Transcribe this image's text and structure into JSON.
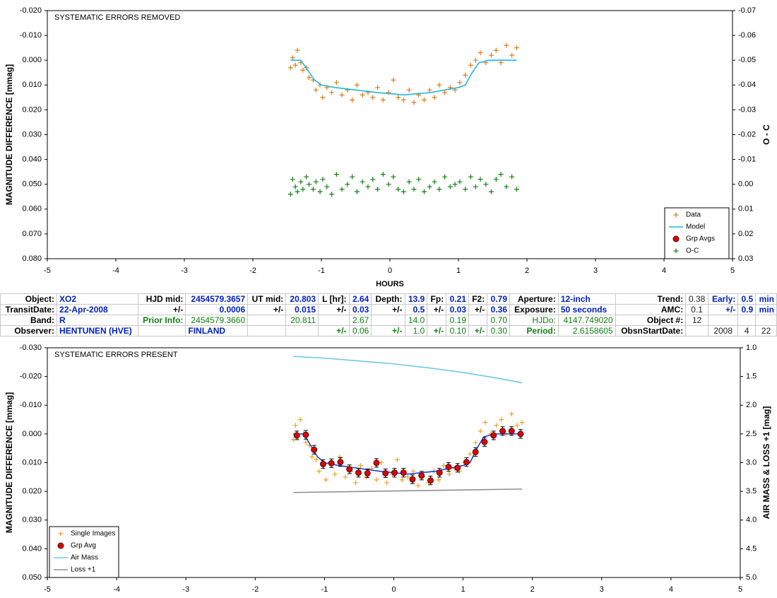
{
  "chart_data": [
    {
      "type": "scatter",
      "annotation": "SYSTEMATIC ERRORS REMOVED",
      "x_label": "HOURS",
      "y_label": "MAGNITUDE DIFFERENCE [mmag]",
      "y2_label": "O - C",
      "xlim": [
        -5,
        5
      ],
      "xticks": [
        -5,
        -4,
        -3,
        -2,
        -1,
        0,
        1,
        2,
        3,
        4,
        5
      ],
      "ylim": [
        -0.02,
        0.08
      ],
      "y_inverted": true,
      "yticks": [
        {
          "value": -0.02,
          "label": "-0.020"
        },
        {
          "value": -0.01,
          "label": "-0.010"
        },
        {
          "value": 0,
          "label": "0.000"
        },
        {
          "value": 0.01,
          "label": "0.010"
        },
        {
          "value": 0.02,
          "label": "0.020"
        },
        {
          "value": 0.03,
          "label": "0.030"
        },
        {
          "value": 0.04,
          "label": "0.040"
        },
        {
          "value": 0.05,
          "label": "0.050"
        },
        {
          "value": 0.06,
          "label": "0.060"
        },
        {
          "value": 0.07,
          "label": "0.070"
        },
        {
          "value": 0.08,
          "label": "0.080"
        }
      ],
      "y2lim": [
        -0.07,
        0.03
      ],
      "y2ticks": [
        {
          "value": -0.07,
          "label": "-0.07"
        },
        {
          "value": -0.06,
          "label": "-0.06"
        },
        {
          "value": -0.05,
          "label": "-0.05"
        },
        {
          "value": -0.04,
          "label": "-0.04"
        },
        {
          "value": -0.03,
          "label": "-0.03"
        },
        {
          "value": -0.02,
          "label": "-0.02"
        },
        {
          "value": -0.01,
          "label": "-0.01"
        },
        {
          "value": 0,
          "label": "0.00"
        },
        {
          "value": 0.01,
          "label": "0.01"
        },
        {
          "value": 0.02,
          "label": "0.02"
        },
        {
          "value": 0.03,
          "label": "0.03"
        }
      ],
      "legend": "lower right",
      "series": [
        {
          "name": "Data",
          "marker": "plus",
          "color": "#e07818",
          "x": [
            -1.45,
            -1.42,
            -1.38,
            -1.35,
            -1.3,
            -1.27,
            -1.22,
            -1.18,
            -1.12,
            -1.08,
            -1.02,
            -0.98,
            -0.92,
            -0.85,
            -0.78,
            -0.7,
            -0.62,
            -0.55,
            -0.48,
            -0.4,
            -0.32,
            -0.25,
            -0.18,
            -0.1,
            -0.02,
            0.05,
            0.12,
            0.2,
            0.28,
            0.35,
            0.42,
            0.5,
            0.58,
            0.65,
            0.72,
            0.8,
            0.88,
            0.95,
            1.02,
            1.1,
            1.18,
            1.25,
            1.32,
            1.4,
            1.48,
            1.55,
            1.62,
            1.7,
            1.78,
            1.85
          ],
          "values": [
            0.003,
            -0.001,
            0.002,
            -0.004,
            0.001,
            0.004,
            0.003,
            0.007,
            0.008,
            0.012,
            0.01,
            0.015,
            0.011,
            0.013,
            0.009,
            0.014,
            0.012,
            0.016,
            0.01,
            0.014,
            0.013,
            0.015,
            0.011,
            0.016,
            0.013,
            0.008,
            0.015,
            0.016,
            0.012,
            0.017,
            0.014,
            0.016,
            0.012,
            0.015,
            0.01,
            0.013,
            0.011,
            0.012,
            0.009,
            0.006,
            0.002,
            0.0,
            -0.003,
            0.001,
            -0.002,
            -0.004,
            0.001,
            -0.006,
            -0.002,
            -0.005
          ]
        },
        {
          "name": "Model",
          "marker": "line",
          "color": "#20b8e0",
          "x": [
            -1.45,
            -1.3,
            -1.2,
            -1.1,
            -1.0,
            -0.8,
            -0.5,
            -0.2,
            0.0,
            0.2,
            0.4,
            0.6,
            0.8,
            1.0,
            1.1,
            1.2,
            1.3,
            1.45,
            1.85
          ],
          "values": [
            0.0,
            0.0,
            0.004,
            0.008,
            0.01,
            0.011,
            0.012,
            0.013,
            0.0135,
            0.014,
            0.0135,
            0.013,
            0.012,
            0.011,
            0.01,
            0.005,
            0.001,
            0.0,
            0.0
          ]
        },
        {
          "name": "Grp Avgs",
          "marker": "circle",
          "color": "#e00000",
          "x": [],
          "values": []
        },
        {
          "name": "O-C",
          "marker": "plus",
          "color": "#108010",
          "axis": "y2",
          "x": [
            -1.45,
            -1.42,
            -1.38,
            -1.35,
            -1.3,
            -1.27,
            -1.22,
            -1.18,
            -1.12,
            -1.08,
            -1.02,
            -0.98,
            -0.92,
            -0.85,
            -0.78,
            -0.7,
            -0.62,
            -0.55,
            -0.48,
            -0.4,
            -0.32,
            -0.25,
            -0.18,
            -0.1,
            -0.02,
            0.05,
            0.12,
            0.2,
            0.28,
            0.35,
            0.42,
            0.5,
            0.58,
            0.65,
            0.72,
            0.8,
            0.88,
            0.95,
            1.02,
            1.1,
            1.18,
            1.25,
            1.32,
            1.4,
            1.48,
            1.55,
            1.62,
            1.7,
            1.78,
            1.85
          ],
          "values": [
            0.004,
            -0.002,
            0.001,
            0.003,
            -0.001,
            0.002,
            -0.003,
            0.0,
            0.002,
            -0.001,
            0.003,
            -0.002,
            0.001,
            0.004,
            -0.004,
            0.002,
            0.0,
            -0.003,
            0.003,
            -0.001,
            0.001,
            -0.002,
            0.002,
            -0.004,
            0.0,
            -0.003,
            0.002,
            0.003,
            -0.001,
            0.002,
            -0.002,
            0.003,
            0.001,
            -0.001,
            0.002,
            -0.003,
            0.001,
            0.0,
            -0.001,
            0.002,
            -0.003,
            0.001,
            -0.002,
            0.0,
            0.003,
            -0.002,
            -0.004,
            0.001,
            -0.003,
            0.002
          ]
        }
      ]
    },
    {
      "type": "scatter",
      "annotation": "SYSTEMATIC ERRORS PRESENT",
      "y_label": "MAGNITUDE DIFFERENCE [mmag]",
      "y2_label": "AIR MASS & LOSS +1 [mag]",
      "xlim": [
        -5,
        5
      ],
      "xticks": [
        -5,
        -4,
        -3,
        -2,
        -1,
        0,
        1,
        2,
        3,
        4,
        5
      ],
      "ylim": [
        -0.03,
        0.05
      ],
      "y_inverted": true,
      "yticks": [
        {
          "value": -0.03,
          "label": "-0.030"
        },
        {
          "value": -0.02,
          "label": "-0.020"
        },
        {
          "value": -0.01,
          "label": "-0.010"
        },
        {
          "value": 0,
          "label": "0.000"
        },
        {
          "value": 0.01,
          "label": "0.010"
        },
        {
          "value": 0.02,
          "label": "0.020"
        },
        {
          "value": 0.03,
          "label": "0.030"
        },
        {
          "value": 0.04,
          "label": "0.040"
        },
        {
          "value": 0.05,
          "label": "0.050"
        }
      ],
      "y2lim": [
        1.0,
        5.0
      ],
      "y2ticks": [
        {
          "value": 1,
          "label": "1.0"
        },
        1.5,
        {
          "value": 2,
          "label": "2.0"
        },
        2.5,
        {
          "value": 3,
          "label": "3.0"
        },
        3.5,
        {
          "value": 4,
          "label": "4.0"
        },
        4.5,
        {
          "value": 5,
          "label": "5.0"
        }
      ],
      "legend": "lower left",
      "series": [
        {
          "name": "Single Images",
          "marker": "plus",
          "color": "#f0a020",
          "x": [
            -1.45,
            -1.42,
            -1.38,
            -1.35,
            -1.3,
            -1.27,
            -1.22,
            -1.18,
            -1.12,
            -1.08,
            -1.02,
            -0.98,
            -0.92,
            -0.85,
            -0.78,
            -0.7,
            -0.62,
            -0.55,
            -0.48,
            -0.4,
            -0.32,
            -0.25,
            -0.18,
            -0.1,
            -0.02,
            0.05,
            0.12,
            0.2,
            0.28,
            0.35,
            0.42,
            0.5,
            0.58,
            0.65,
            0.72,
            0.8,
            0.88,
            0.95,
            1.02,
            1.1,
            1.18,
            1.25,
            1.32,
            1.4,
            1.48,
            1.55,
            1.62,
            1.7,
            1.78,
            1.85
          ],
          "values": [
            0.002,
            -0.003,
            0.001,
            -0.005,
            0.0,
            0.003,
            0.004,
            0.008,
            0.009,
            0.013,
            0.011,
            0.016,
            0.01,
            0.014,
            0.008,
            0.015,
            0.013,
            0.017,
            0.011,
            0.015,
            0.012,
            0.016,
            0.01,
            0.017,
            0.014,
            0.009,
            0.016,
            0.015,
            0.013,
            0.018,
            0.015,
            0.017,
            0.013,
            0.016,
            0.011,
            0.014,
            0.012,
            0.013,
            0.01,
            0.007,
            0.003,
            -0.001,
            -0.004,
            0.0,
            -0.003,
            -0.005,
            0.0,
            -0.007,
            -0.003,
            -0.004
          ]
        },
        {
          "marker": "line",
          "color": "#2040e0",
          "x": [
            -1.45,
            -1.3,
            -1.2,
            -1.1,
            -1.0,
            -0.8,
            -0.5,
            -0.2,
            0.0,
            0.2,
            0.4,
            0.6,
            0.8,
            1.0,
            1.1,
            1.2,
            1.3,
            1.45,
            1.85
          ],
          "values": [
            0.0,
            0.0,
            0.004,
            0.008,
            0.01,
            0.011,
            0.012,
            0.013,
            0.0135,
            0.014,
            0.0135,
            0.013,
            0.012,
            0.011,
            0.01,
            0.005,
            0.001,
            0.0,
            0.0
          ]
        },
        {
          "name": "Grp Avg",
          "marker": "circle",
          "color": "#e00000",
          "x": [
            -1.4,
            -1.27,
            -1.15,
            -1.02,
            -0.9,
            -0.77,
            -0.64,
            -0.51,
            -0.38,
            -0.25,
            -0.12,
            0.01,
            0.14,
            0.27,
            0.4,
            0.53,
            0.66,
            0.79,
            0.92,
            1.05,
            1.18,
            1.31,
            1.44,
            1.57,
            1.7,
            1.83
          ],
          "values": [
            0.0005,
            0.0003,
            0.0055,
            0.0105,
            0.0102,
            0.0098,
            0.0123,
            0.0135,
            0.0137,
            0.0101,
            0.0137,
            0.0135,
            0.0135,
            0.0158,
            0.0145,
            0.0162,
            0.0135,
            0.0115,
            0.0118,
            0.0098,
            0.0063,
            0.0028,
            0.0005,
            -0.001,
            -0.001,
            0.0
          ],
          "errors": [
            0.0015,
            0.0015,
            0.0015,
            0.0015,
            0.0015,
            0.0015,
            0.0015,
            0.0015,
            0.0015,
            0.0015,
            0.0015,
            0.0015,
            0.0015,
            0.0015,
            0.0015,
            0.0015,
            0.0015,
            0.0015,
            0.0015,
            0.0015,
            0.0015,
            0.0015,
            0.0015,
            0.0015,
            0.0015,
            0.0015
          ]
        },
        {
          "name": "Air Mass",
          "marker": "line",
          "color": "#70c8e8",
          "axis": "y2",
          "x": [
            -1.45,
            -1.0,
            -0.5,
            0.0,
            0.5,
            1.0,
            1.5,
            1.85
          ],
          "values": [
            1.15,
            1.18,
            1.23,
            1.28,
            1.35,
            1.43,
            1.53,
            1.61
          ]
        },
        {
          "name": "Loss +1",
          "marker": "line",
          "color": "#909090",
          "axis": "y2",
          "x": [
            -1.45,
            1.85
          ],
          "values": [
            3.52,
            3.46
          ]
        }
      ]
    }
  ],
  "table": {
    "rows": [
      [
        "Object:",
        "XO2",
        "HJD mid:",
        "2454579.3657",
        "UT mid:",
        "20.803",
        "L [hr]:",
        "2.64",
        "Depth:",
        "13.9",
        "Fp:",
        "0.21",
        "F2:",
        "0.79",
        "Aperture:",
        "12-inch",
        "Trend:",
        "0.38",
        "Early:",
        "0.5",
        "min"
      ],
      [
        "TransitDate:",
        "22-Apr-2008",
        "+/-",
        "0.0006",
        "+/-",
        "0.015",
        "+/-",
        "0.03",
        "+/-",
        "0.5",
        "+/-",
        "0.03",
        "+/-",
        "0.36",
        "Exposure:",
        "50 seconds",
        "AMC:",
        "0.1",
        "+/-",
        "0.9",
        "min"
      ],
      [
        "Band:",
        "R",
        "Prior Info:",
        "2454579.3660",
        null,
        "20.811",
        null,
        "2.67",
        null,
        "14.0",
        null,
        "0.19",
        null,
        "0.70",
        "HJDo:",
        "4147.749020",
        "Object #:",
        "12",
        null,
        null,
        null
      ],
      [
        "Observer:",
        "HENTUNEN (HVE)",
        null,
        "FINLAND",
        null,
        null,
        "+/-",
        "0.06",
        "+/-",
        "1.0",
        "+/-",
        "0.10",
        "+/-",
        "0.30",
        "Period:",
        "2.6158605",
        "ObsnStartDate:",
        null,
        "2008",
        "4",
        "22"
      ]
    ]
  }
}
